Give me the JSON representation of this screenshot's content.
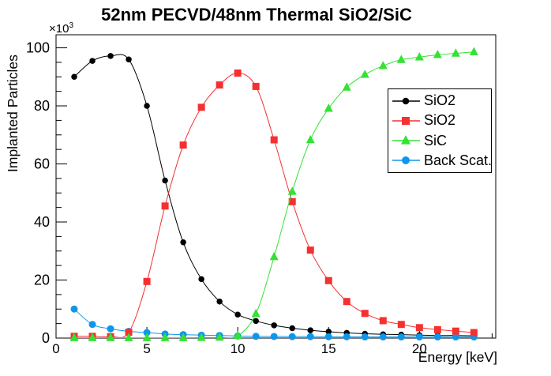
{
  "title": "52nm PECVD/48nm Thermal SiO2/SiC",
  "axes": {
    "x_label": "Energy [keV]",
    "y_label": "Implanted Particles",
    "y_multiplier_base": "×10",
    "y_multiplier_exp": "3"
  },
  "chart_data": {
    "type": "line",
    "title": "52nm PECVD/48nm Thermal SiO2/SiC",
    "xlabel": "Energy [keV]",
    "ylabel": "Implanted Particles",
    "y_unit_multiplier": "×10³",
    "xlim": [
      0,
      24.2
    ],
    "ylim": [
      0,
      104.5
    ],
    "x_major_ticks": [
      0,
      5,
      10,
      15,
      20
    ],
    "x_minor_step": 1,
    "y_major_ticks": [
      0,
      20,
      40,
      60,
      80,
      100
    ],
    "y_minor_step": 5,
    "grid": false,
    "legend_position": "middle-right",
    "x": [
      1,
      2,
      3,
      4,
      5,
      6,
      7,
      8,
      9,
      10,
      11,
      12,
      13,
      14,
      15,
      16,
      17,
      18,
      19,
      20,
      21,
      22,
      23
    ],
    "series": [
      {
        "name": "SiO2",
        "marker": "circle",
        "color": "#000000",
        "marker_size": 7.5,
        "values": [
          90,
          95.5,
          97.2,
          96,
          80,
          54.3,
          33,
          20.3,
          12.6,
          8.1,
          5.9,
          4.4,
          3.4,
          2.7,
          2.2,
          1.8,
          1.5,
          1.3,
          1.2,
          1.0,
          0.9,
          0.9,
          0.8
        ]
      },
      {
        "name": "SiO2",
        "marker": "square",
        "color": "#f53030",
        "marker_size": 9,
        "values": [
          0.6,
          0.6,
          0.5,
          2.0,
          19.5,
          45.5,
          66.5,
          79.5,
          87.2,
          91.3,
          86.7,
          68.3,
          47,
          30.3,
          19.8,
          12.6,
          8.5,
          6.0,
          4.7,
          3.6,
          2.9,
          2.4,
          1.9
        ]
      },
      {
        "name": "SiC",
        "marker": "triangle",
        "color": "#33e233",
        "marker_size": 10,
        "values": [
          0.1,
          0.1,
          0.1,
          0.1,
          0.1,
          0.1,
          0.1,
          0.15,
          0.25,
          0.8,
          8.4,
          28,
          50.5,
          68.3,
          79.1,
          86.4,
          90.8,
          93.8,
          95.9,
          96.8,
          97.6,
          98.1,
          98.6
        ]
      },
      {
        "name": "Back Scat.",
        "marker": "circle",
        "color": "#0f96eb",
        "marker_size": 9,
        "values": [
          10,
          4.7,
          3.2,
          2.3,
          1.9,
          1.4,
          1.2,
          1.0,
          0.9,
          0.7,
          0.6,
          0.55,
          0.5,
          0.5,
          0.45,
          0.45,
          0.4,
          0.4,
          0.4,
          0.4,
          0.4,
          0.4,
          0.4
        ]
      }
    ],
    "draw_order": [
      0,
      3,
      1,
      2
    ]
  }
}
